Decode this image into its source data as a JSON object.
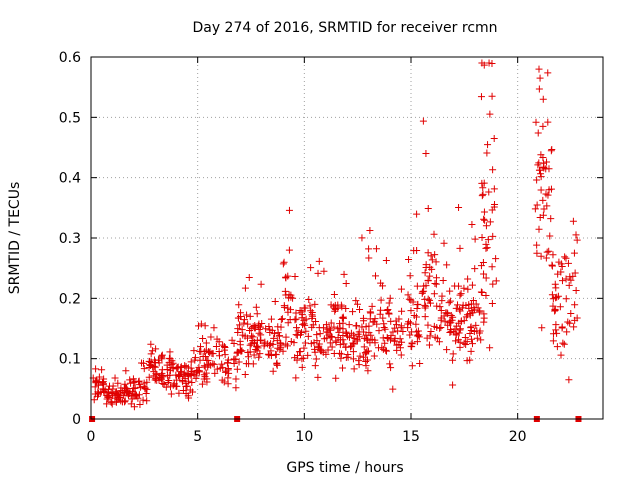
{
  "chart_data": {
    "type": "scatter",
    "title": "Day 274 of 2016, SRMTID for receiver rcmn",
    "xlabel": "GPS time / hours",
    "ylabel": "SRMTID / TECUs",
    "xlim": [
      0,
      24
    ],
    "ylim": [
      0,
      0.6
    ],
    "xticks": [
      0,
      5,
      10,
      15,
      20
    ],
    "yticks": [
      0,
      0.1,
      0.2,
      0.3,
      0.4,
      0.5,
      0.6
    ],
    "grid": true,
    "marker": "+",
    "color": "#e00000",
    "baseline_markers_x": [
      0.05,
      6.85,
      20.9,
      22.85
    ],
    "series": [
      {
        "name": "SRMTID",
        "segments": [
          {
            "x_start": 0.1,
            "x_end": 0.7,
            "count": 28,
            "center": 0.05,
            "spread": 0.02
          },
          {
            "x_start": 0.7,
            "x_end": 1.5,
            "count": 40,
            "center": 0.038,
            "spread": 0.014
          },
          {
            "x_start": 1.5,
            "x_end": 2.7,
            "count": 55,
            "center": 0.048,
            "spread": 0.02
          },
          {
            "x_start": 2.7,
            "x_end": 3.4,
            "count": 40,
            "center": 0.085,
            "spread": 0.03
          },
          {
            "x_start": 3.4,
            "x_end": 5.0,
            "count": 75,
            "center": 0.07,
            "spread": 0.025
          },
          {
            "x_start": 5.0,
            "x_end": 6.8,
            "count": 75,
            "center": 0.095,
            "spread": 0.03
          },
          {
            "x_start": 6.8,
            "x_end": 9.0,
            "count": 110,
            "center": 0.13,
            "spread": 0.04
          },
          {
            "x_start": 9.0,
            "x_end": 9.5,
            "count": 25,
            "center": 0.19,
            "spread": 0.07
          },
          {
            "x_start": 9.5,
            "x_end": 12.0,
            "count": 130,
            "center": 0.145,
            "spread": 0.05
          },
          {
            "x_start": 12.0,
            "x_end": 15.5,
            "count": 160,
            "center": 0.15,
            "spread": 0.055
          },
          {
            "x_start": 15.5,
            "x_end": 16.2,
            "count": 40,
            "center": 0.22,
            "spread": 0.09
          },
          {
            "x_start": 16.2,
            "x_end": 18.3,
            "count": 110,
            "center": 0.16,
            "spread": 0.06
          },
          {
            "x_start": 18.3,
            "x_end": 19.0,
            "count": 45,
            "center": 0.3,
            "spread": 0.12
          },
          {
            "x_start": 20.8,
            "x_end": 21.6,
            "count": 45,
            "center": 0.38,
            "spread": 0.12
          },
          {
            "x_start": 21.6,
            "x_end": 22.8,
            "count": 55,
            "center": 0.2,
            "spread": 0.07
          }
        ],
        "notable_points": [
          {
            "x": 9.3,
            "y": 0.28
          },
          {
            "x": 15.7,
            "y": 0.44
          },
          {
            "x": 18.8,
            "y": 0.535
          },
          {
            "x": 18.9,
            "y": 0.465
          },
          {
            "x": 21.0,
            "y": 0.58
          },
          {
            "x": 21.05,
            "y": 0.565
          },
          {
            "x": 21.2,
            "y": 0.53
          },
          {
            "x": 22.4,
            "y": 0.065
          }
        ]
      }
    ]
  }
}
